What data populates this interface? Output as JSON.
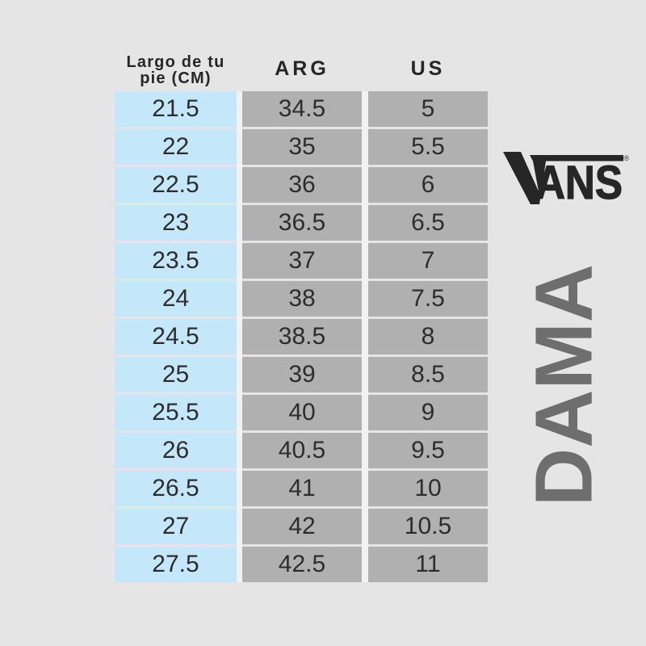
{
  "table": {
    "headers": {
      "col1_line1": "Largo de tu",
      "col1_line2": "pie (CM)",
      "col2": "ARG",
      "col3": "US"
    },
    "rows": [
      {
        "cm": "21.5",
        "arg": "34.5",
        "us": "5"
      },
      {
        "cm": "22",
        "arg": "35",
        "us": "5.5"
      },
      {
        "cm": "22.5",
        "arg": "36",
        "us": "6"
      },
      {
        "cm": "23",
        "arg": "36.5",
        "us": "6.5"
      },
      {
        "cm": "23.5",
        "arg": "37",
        "us": "7"
      },
      {
        "cm": "24",
        "arg": "38",
        "us": "7.5"
      },
      {
        "cm": "24.5",
        "arg": "38.5",
        "us": "8"
      },
      {
        "cm": "25",
        "arg": "39",
        "us": "8.5"
      },
      {
        "cm": "25.5",
        "arg": "40",
        "us": "9"
      },
      {
        "cm": "26",
        "arg": "40.5",
        "us": "9.5"
      },
      {
        "cm": "26.5",
        "arg": "41",
        "us": "10"
      },
      {
        "cm": "27",
        "arg": "42",
        "us": "10.5"
      },
      {
        "cm": "27.5",
        "arg": "42.5",
        "us": "11"
      }
    ],
    "colors": {
      "cm_column": "#c4e8fa",
      "size_column": "#b0b0b0",
      "text": "#2d2d2d",
      "background": "#e5e5e5"
    }
  },
  "branding": {
    "logo": "ANS",
    "registered": "®",
    "category": "DAMA",
    "logo_color": "#262626",
    "category_color": "#6e6e6e"
  }
}
